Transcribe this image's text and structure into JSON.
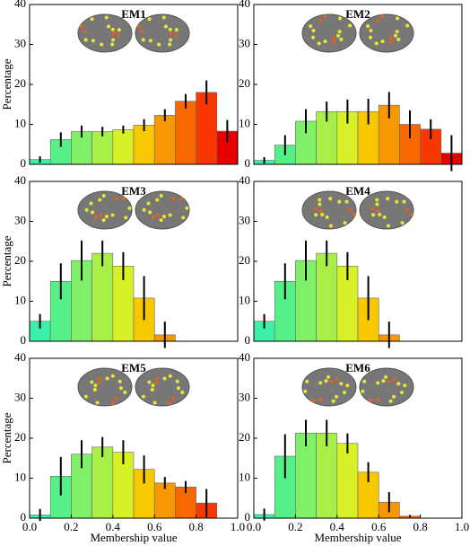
{
  "chart_data": [
    {
      "type": "histogram",
      "title": "EM1",
      "ylabel": "Percentage",
      "bins": [
        0,
        0.1,
        0.2,
        0.3,
        0.4,
        0.5,
        0.6,
        0.7,
        0.8,
        0.9,
        1.0
      ],
      "values": [
        1.2,
        6.2,
        8.2,
        8.2,
        8.7,
        9.8,
        12.3,
        15.8,
        18,
        8.3
      ],
      "errors": [
        0.8,
        1.8,
        1.5,
        1.2,
        1,
        1.5,
        1.5,
        1.8,
        3,
        2.8
      ],
      "colors": [
        "#3cf0a8",
        "#56f088",
        "#80f068",
        "#a8f048",
        "#d8f028",
        "#f8c800",
        "#f89800",
        "#f86800",
        "#f83800",
        "#e80000"
      ],
      "xlim": [
        0,
        1
      ],
      "ylim": [
        0,
        40
      ],
      "yticks": [
        0,
        10,
        20,
        30,
        40
      ]
    },
    {
      "type": "histogram",
      "title": "EM2",
      "bins": [
        0,
        0.1,
        0.2,
        0.3,
        0.4,
        0.5,
        0.6,
        0.7,
        0.8,
        0.9,
        1.0
      ],
      "values": [
        1,
        4.8,
        10.8,
        13.2,
        13.2,
        13.2,
        14.8,
        10,
        8.8,
        2.8
      ],
      "errors": [
        0.8,
        2.5,
        3,
        2.5,
        3,
        3.2,
        3.3,
        3.5,
        2.5,
        4.5
      ],
      "colors": [
        "#3cf0a8",
        "#56f088",
        "#80f068",
        "#a8f048",
        "#d8f028",
        "#f8c800",
        "#f89800",
        "#f86800",
        "#f83800",
        "#e80000"
      ],
      "xlim": [
        0,
        1
      ],
      "ylim": [
        0,
        40
      ],
      "yticks": [
        0,
        10,
        20,
        30,
        40
      ]
    },
    {
      "type": "histogram",
      "title": "EM3",
      "ylabel": "Percentage",
      "bins": [
        0,
        0.1,
        0.2,
        0.3,
        0.4,
        0.5,
        0.6,
        0.7,
        0.8,
        0.9,
        1.0
      ],
      "values": [
        5,
        15,
        20.2,
        22,
        18.8,
        10.8,
        1.6,
        0,
        0,
        0
      ],
      "errors": [
        1.8,
        4.5,
        5,
        3.2,
        3.5,
        5.5,
        3.3,
        0,
        0,
        0
      ],
      "colors": [
        "#3cf0a8",
        "#56f088",
        "#80f068",
        "#a8f048",
        "#d8f028",
        "#f8c800",
        "#f89800",
        "#f86800",
        "#f83800",
        "#e80000"
      ],
      "xlim": [
        0,
        1
      ],
      "ylim": [
        0,
        40
      ],
      "yticks": [
        0,
        10,
        20,
        30,
        40
      ]
    },
    {
      "type": "histogram",
      "title": "EM4",
      "bins": [
        0,
        0.1,
        0.2,
        0.3,
        0.4,
        0.5,
        0.6,
        0.7,
        0.8,
        0.9,
        1.0
      ],
      "values": [
        5,
        15,
        20.2,
        22,
        18.8,
        10.8,
        1.6,
        0,
        0,
        0
      ],
      "errors": [
        1.8,
        4.5,
        5,
        3.2,
        3.5,
        5.5,
        3.3,
        0,
        0,
        0
      ],
      "colors": [
        "#3cf0a8",
        "#56f088",
        "#80f068",
        "#a8f048",
        "#d8f028",
        "#f8c800",
        "#f89800",
        "#f86800",
        "#f83800",
        "#e80000"
      ],
      "xlim": [
        0,
        1
      ],
      "ylim": [
        0,
        40
      ],
      "yticks": [
        0,
        10,
        20,
        30,
        40
      ]
    },
    {
      "type": "histogram",
      "title": "EM5",
      "ylabel": "Percentage",
      "xlabel": "Membership value",
      "bins": [
        0,
        0.1,
        0.2,
        0.3,
        0.4,
        0.5,
        0.6,
        0.7,
        0.8,
        0.9,
        1.0
      ],
      "values": [
        0.8,
        10.5,
        16,
        17.8,
        16.5,
        12.2,
        8.8,
        7.8,
        3.8,
        0
      ],
      "errors": [
        1.5,
        4.8,
        3.5,
        2.5,
        3,
        3.5,
        1.5,
        1.5,
        3.5,
        0
      ],
      "colors": [
        "#3cf0a8",
        "#56f088",
        "#80f068",
        "#a8f048",
        "#d8f028",
        "#f8c800",
        "#f89800",
        "#f86800",
        "#f83800",
        "#e80000"
      ],
      "xlim": [
        0,
        1
      ],
      "ylim": [
        0,
        40
      ],
      "yticks": [
        0,
        10,
        20,
        30,
        40
      ],
      "xticks": [
        {
          "value": 0,
          "label": "0.0"
        },
        {
          "value": 0.2,
          "label": "0.2"
        },
        {
          "value": 0.4,
          "label": "0.4"
        },
        {
          "value": 0.6,
          "label": "0.6"
        },
        {
          "value": 0.8,
          "label": "0.8"
        },
        {
          "value": 1,
          "label": "1.0"
        }
      ]
    },
    {
      "type": "histogram",
      "title": "EM6",
      "xlabel": "Membership value",
      "bins": [
        0,
        0.1,
        0.2,
        0.3,
        0.4,
        0.5,
        0.6,
        0.7,
        0.8,
        0.9,
        1.0
      ],
      "values": [
        0.9,
        15.5,
        21.3,
        21.3,
        18.7,
        11.5,
        4,
        0.5,
        0,
        0
      ],
      "errors": [
        1.5,
        5.5,
        3.3,
        3.3,
        2.5,
        2.5,
        2.5,
        0.3,
        0,
        0
      ],
      "colors": [
        "#3cf0a8",
        "#56f088",
        "#80f068",
        "#a8f048",
        "#d8f028",
        "#f8c800",
        "#f89800",
        "#f86800",
        "#f83800",
        "#e80000"
      ],
      "xlim": [
        0,
        1
      ],
      "ylim": [
        0,
        40
      ],
      "yticks": [
        0,
        10,
        20,
        30,
        40
      ],
      "xticks": [
        {
          "value": 0,
          "label": "0.0"
        },
        {
          "value": 0.2,
          "label": "0.2"
        },
        {
          "value": 0.4,
          "label": "0.4"
        },
        {
          "value": 0.6,
          "label": "0.6"
        },
        {
          "value": 0.8,
          "label": "0.8"
        },
        {
          "value": 1,
          "label": "1.0"
        }
      ]
    }
  ]
}
